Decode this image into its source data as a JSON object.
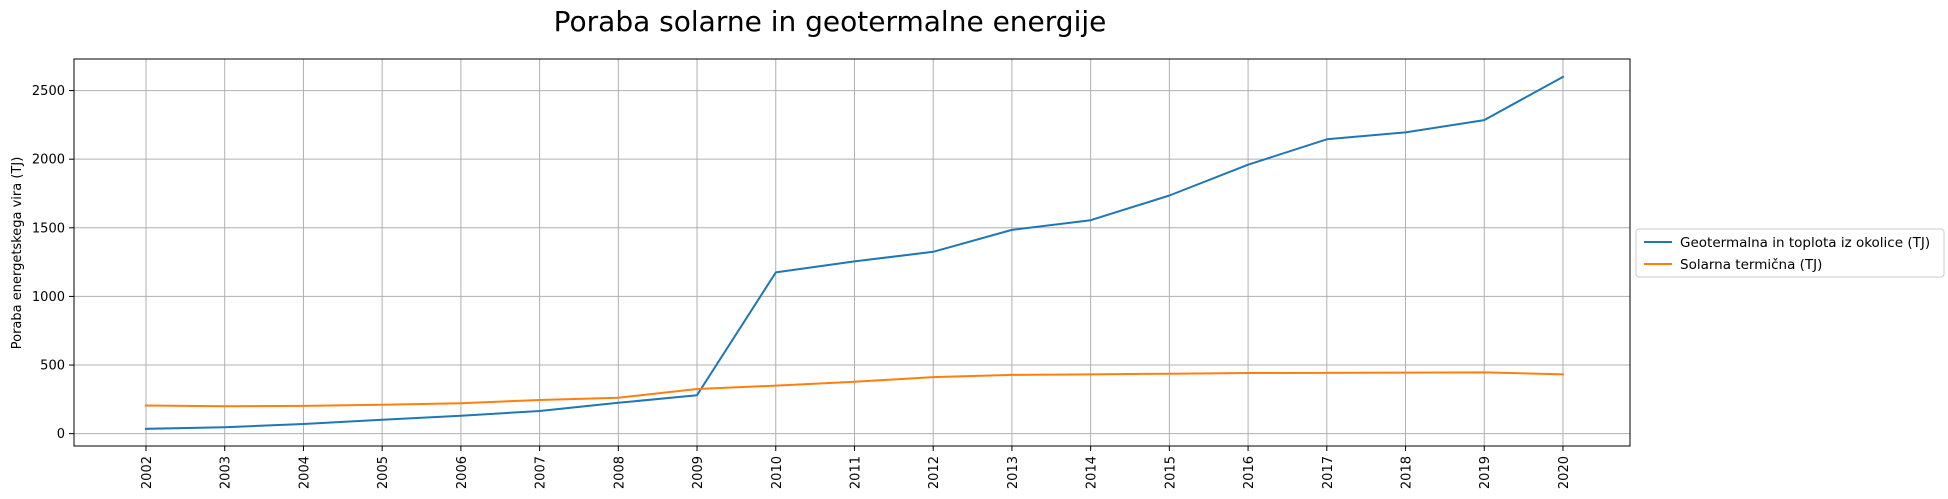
{
  "chart_data": {
    "type": "line",
    "title": "Poraba solarne in geotermalne energije",
    "xlabel": "",
    "ylabel": "Poraba energetskega vira (TJ)",
    "categories": [
      "2002",
      "2003",
      "2004",
      "2005",
      "2006",
      "2007",
      "2008",
      "2009",
      "2010",
      "2011",
      "2012",
      "2013",
      "2014",
      "2015",
      "2016",
      "2017",
      "2018",
      "2019",
      "2020"
    ],
    "ylim": [
      -90,
      2730
    ],
    "yticks": [
      0,
      500,
      1000,
      1500,
      2000,
      2500
    ],
    "grid": true,
    "legend_position": "center-right",
    "series": [
      {
        "name": "Geotermalna in toplota iz okolice (TJ)",
        "color": "#1f77b4",
        "values": [
          35,
          47,
          70,
          102,
          130,
          165,
          225,
          280,
          1175,
          1255,
          1325,
          1485,
          1555,
          1735,
          1960,
          2145,
          2195,
          2285,
          2600
        ]
      },
      {
        "name": "Solarna termična (TJ)",
        "color": "#ff7f0e",
        "values": [
          205,
          200,
          202,
          210,
          222,
          245,
          262,
          325,
          350,
          378,
          412,
          428,
          432,
          437,
          442,
          443,
          445,
          446,
          432
        ]
      }
    ]
  }
}
